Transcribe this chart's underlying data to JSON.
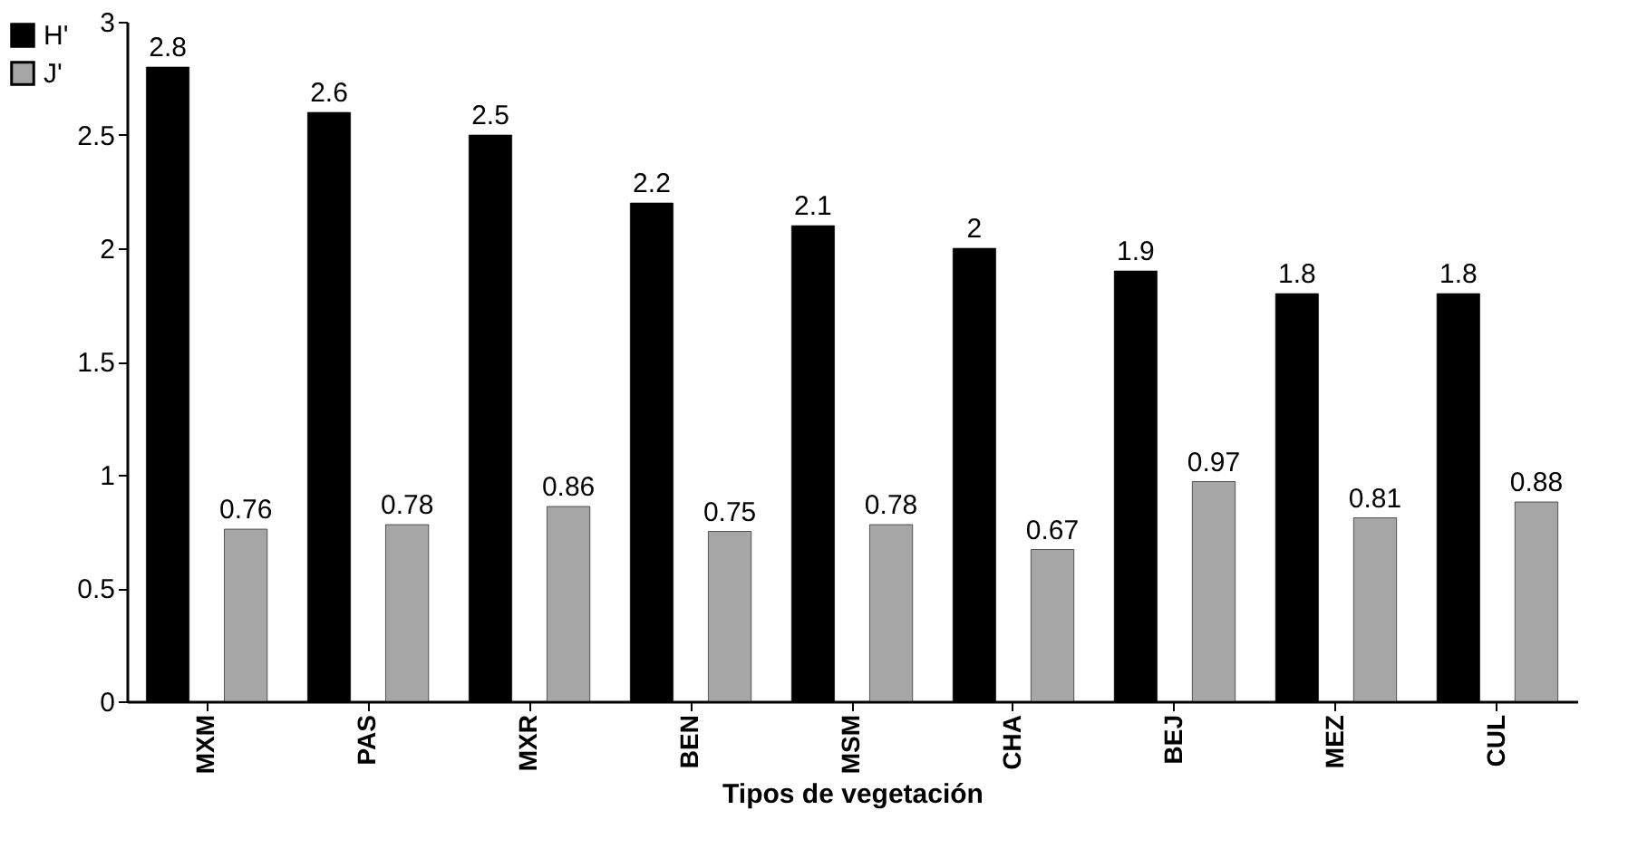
{
  "chart_data": {
    "type": "bar",
    "xlabel": "Tipos de vegetación",
    "categories": [
      "MXM",
      "PAS",
      "MXR",
      "BEN",
      "MSM",
      "CHA",
      "BEJ",
      "MEZ",
      "CUL"
    ],
    "series": [
      {
        "name": "H'",
        "color": "#000000",
        "values": [
          2.8,
          2.6,
          2.5,
          2.2,
          2.1,
          2,
          1.9,
          1.8,
          1.8
        ]
      },
      {
        "name": "J'",
        "color": "#a6a6a6",
        "values": [
          0.76,
          0.78,
          0.86,
          0.75,
          0.78,
          0.67,
          0.97,
          0.81,
          0.88
        ]
      }
    ],
    "ylim": [
      0,
      3
    ],
    "yticks": [
      0,
      0.5,
      1,
      1.5,
      2,
      2.5,
      3
    ],
    "data_labels": true,
    "grid": false,
    "legend": "left"
  }
}
